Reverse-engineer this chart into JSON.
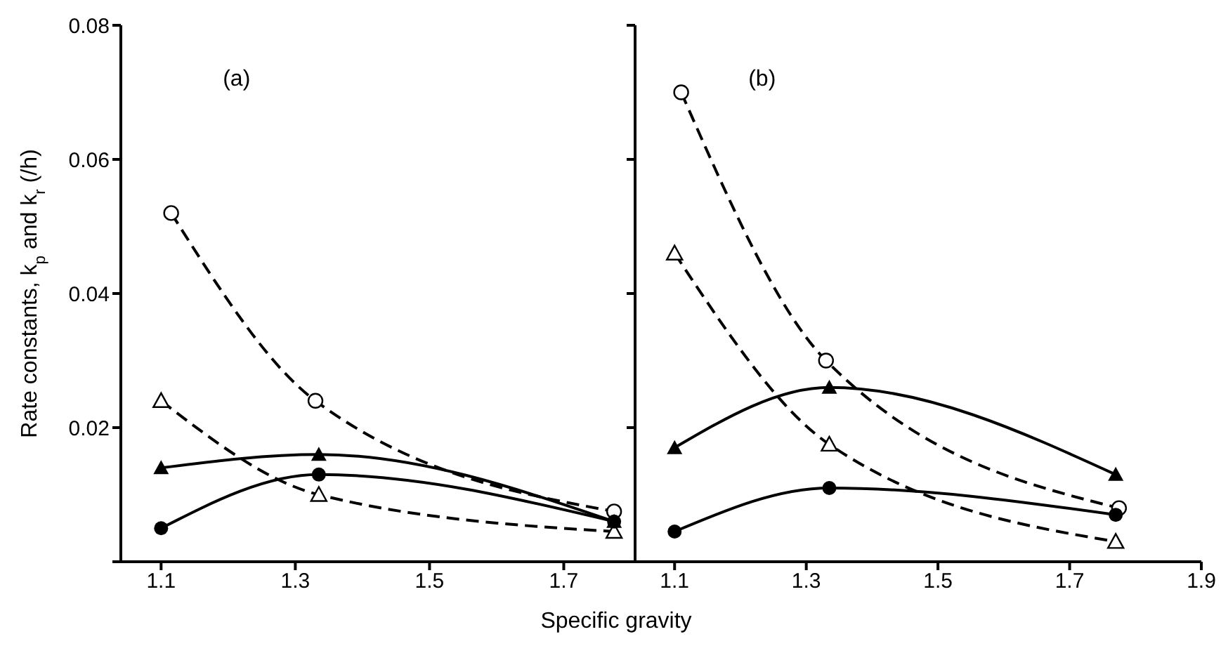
{
  "chart_data": [
    {
      "type": "line",
      "title": "(a)",
      "ylabel": "Rate constants, k$_{p}$ and k$_{r}$ (/h)",
      "x": [
        1.1,
        1.335,
        1.775
      ],
      "xlim": [
        1.04,
        1.8
      ],
      "xticks": [
        1.1,
        1.3,
        1.5,
        1.7
      ],
      "ylim": [
        0,
        0.08
      ],
      "yticks": [
        {
          "value": 0,
          "label": null
        },
        0.02,
        0.04,
        0.06,
        0.08
      ],
      "series": [
        {
          "color": "#000000",
          "marker": "circle",
          "line_style": "dashed",
          "x": [
            1.115,
            1.33,
            1.775
          ],
          "values": [
            0.052,
            0.024,
            0.0075
          ]
        },
        {
          "color": "#000000",
          "marker": "triangle",
          "line_style": "dashed",
          "values": [
            0.024,
            0.01,
            0.0045
          ]
        },
        {
          "color": "#000000",
          "marker": "triangle",
          "line_style": "solid",
          "values": [
            0.014,
            0.016,
            0.006
          ]
        },
        {
          "color": "#000000",
          "marker": "circle",
          "line_style": "solid",
          "values": [
            0.005,
            0.013,
            0.006
          ]
        }
      ]
    },
    {
      "type": "line",
      "title": "(b)",
      "xlabel": "Specific gravity",
      "x": [
        1.1,
        1.335,
        1.77
      ],
      "tick_labels": "x",
      "xlim": [
        1.04,
        1.9
      ],
      "xticks": [
        1.1,
        1.3,
        1.5,
        1.7,
        1.9
      ],
      "ylim": [
        0,
        0.08
      ],
      "yticks": [
        0,
        0.02,
        0.04,
        0.06,
        0.08
      ],
      "series": [
        {
          "color": "#000000",
          "marker": "circle",
          "line_style": "dashed",
          "x": [
            1.11,
            1.33,
            1.775
          ],
          "values": [
            0.07,
            0.03,
            0.008
          ]
        },
        {
          "color": "#000000",
          "marker": "triangle",
          "line_style": "dashed",
          "values": [
            0.046,
            0.0175,
            0.003
          ]
        },
        {
          "color": "#000000",
          "marker": "triangle",
          "line_style": "solid",
          "values": [
            0.017,
            0.026,
            0.013
          ]
        },
        {
          "color": "#000000",
          "marker": "circle",
          "line_style": "solid",
          "values": [
            0.0045,
            0.011,
            0.007
          ]
        }
      ]
    }
  ]
}
